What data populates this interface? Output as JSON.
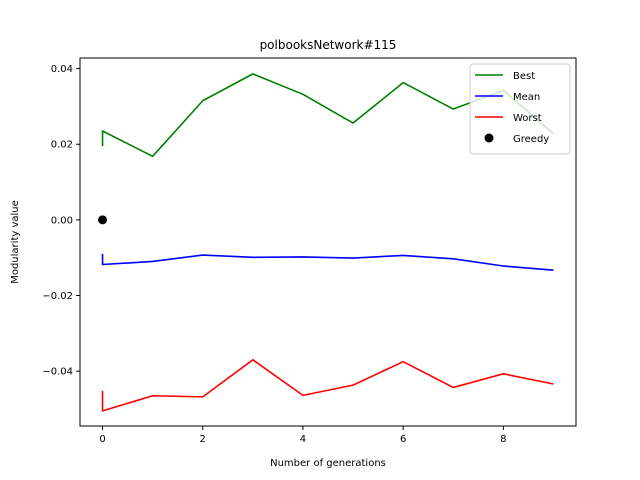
{
  "chart_data": {
    "type": "line",
    "title": "polbooksNetwork#115",
    "xlabel": "Number of generations",
    "ylabel": "Modularity value",
    "xlim": [
      -0.45,
      9.45
    ],
    "ylim": [
      -0.0545,
      0.0428
    ],
    "xticks": [
      0,
      2,
      4,
      6,
      8
    ],
    "xtick_labels": [
      "0",
      "2",
      "4",
      "6",
      "8"
    ],
    "yticks": [
      -0.04,
      -0.02,
      0.0,
      0.02,
      0.04
    ],
    "ytick_labels": [
      "−0.04",
      "−0.02",
      "0.00",
      "0.02",
      "0.04"
    ],
    "grid": false,
    "legend_position": "top-right",
    "series": [
      {
        "name": "Best",
        "color": "#008000",
        "marker": "line",
        "points": [
          [
            0,
            0.0195
          ],
          [
            0,
            0.0235
          ],
          [
            1,
            0.0168
          ],
          [
            2,
            0.0315
          ],
          [
            3,
            0.0386
          ],
          [
            4,
            0.0332
          ],
          [
            5,
            0.0256
          ],
          [
            6,
            0.0363
          ],
          [
            7,
            0.0293
          ],
          [
            8,
            0.0342
          ],
          [
            9,
            0.0228
          ]
        ]
      },
      {
        "name": "Mean",
        "color": "#0000ff",
        "marker": "line",
        "points": [
          [
            0,
            -0.009
          ],
          [
            0,
            -0.0118
          ],
          [
            1,
            -0.011
          ],
          [
            2,
            -0.0093
          ],
          [
            3,
            -0.0099
          ],
          [
            4,
            -0.0098
          ],
          [
            5,
            -0.0101
          ],
          [
            6,
            -0.0094
          ],
          [
            7,
            -0.0103
          ],
          [
            8,
            -0.0122
          ],
          [
            9,
            -0.0133
          ]
        ]
      },
      {
        "name": "Worst",
        "color": "#ff0000",
        "marker": "line",
        "points": [
          [
            0,
            -0.0452
          ],
          [
            0,
            -0.0505
          ],
          [
            1,
            -0.0465
          ],
          [
            2,
            -0.0468
          ],
          [
            3,
            -0.037
          ],
          [
            4,
            -0.0464
          ],
          [
            5,
            -0.0437
          ],
          [
            6,
            -0.0375
          ],
          [
            7,
            -0.0443
          ],
          [
            8,
            -0.0407
          ],
          [
            9,
            -0.0434
          ]
        ]
      },
      {
        "name": "Greedy",
        "color": "#000000",
        "marker": "dot",
        "points": [
          [
            0,
            0.0
          ]
        ]
      }
    ]
  }
}
